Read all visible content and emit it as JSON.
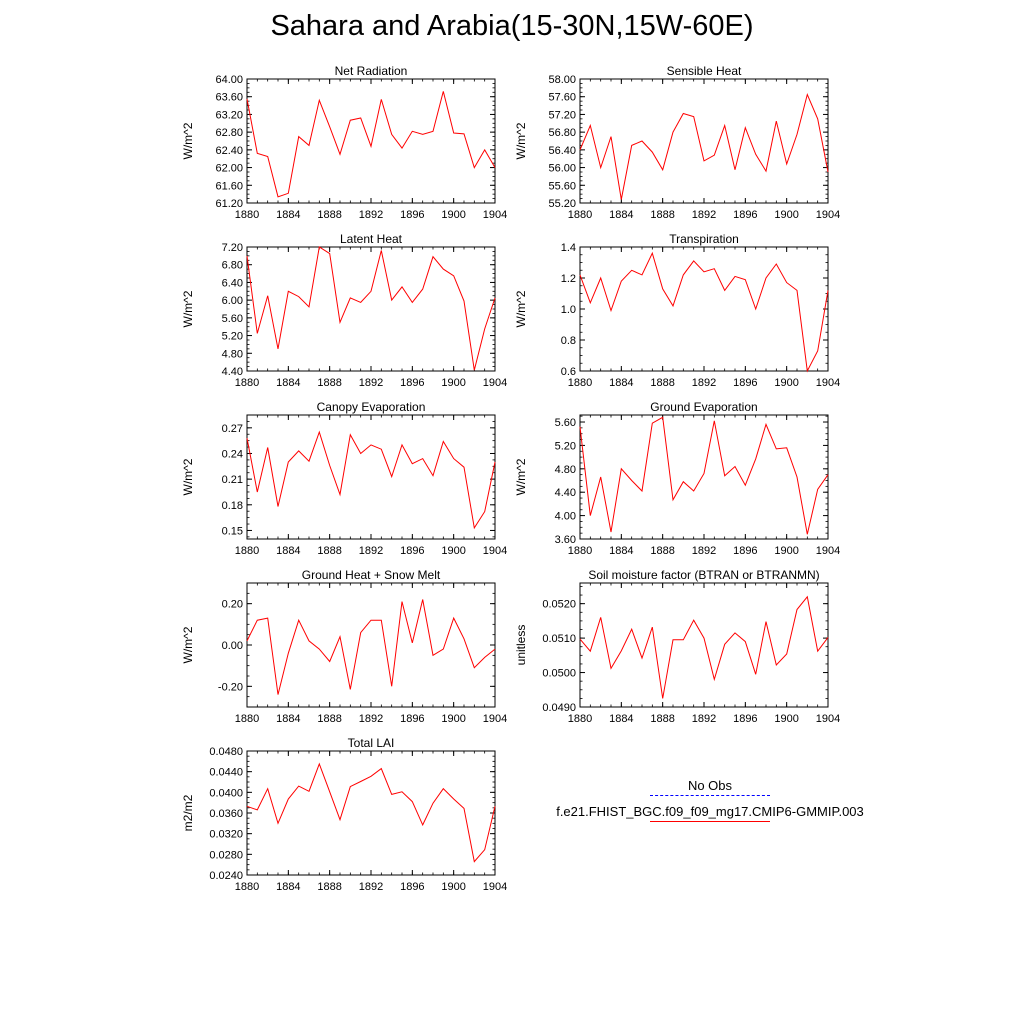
{
  "title": "Sahara and Arabia(15-30N,15W-60E)",
  "colors": {
    "series": "#ff0000",
    "obs": "#0000ff",
    "axis": "#000000"
  },
  "legend": {
    "obs_label": "No Obs",
    "model_label": "f.e21.FHIST_BGC.f09_f09_mg17.CMIP6-GMMIP.003"
  },
  "chart_data": [
    {
      "type": "line",
      "title": "Net Radiation",
      "ylabel": "W/m^2",
      "xlabel": "",
      "x": [
        1880,
        1881,
        1882,
        1883,
        1884,
        1885,
        1886,
        1887,
        1888,
        1889,
        1890,
        1891,
        1892,
        1893,
        1894,
        1895,
        1896,
        1897,
        1898,
        1899,
        1900,
        1901,
        1902,
        1903,
        1904
      ],
      "values": [
        63.55,
        62.32,
        62.25,
        61.34,
        61.42,
        62.7,
        62.5,
        63.52,
        62.92,
        62.3,
        63.07,
        63.12,
        62.48,
        63.54,
        62.75,
        62.44,
        62.82,
        62.75,
        62.82,
        63.72,
        62.78,
        62.76,
        62.0,
        62.4,
        62.0
      ],
      "ylim": [
        61.2,
        64.0
      ],
      "yticks": [
        "61.20",
        "61.60",
        "62.00",
        "62.40",
        "62.80",
        "63.20",
        "63.60",
        "64.00"
      ],
      "xticks": [
        "1880",
        "1884",
        "1888",
        "1892",
        "1896",
        "1900",
        "1904"
      ]
    },
    {
      "type": "line",
      "title": "Sensible Heat",
      "ylabel": "W/m^2",
      "xlabel": "",
      "x": [
        1880,
        1881,
        1882,
        1883,
        1884,
        1885,
        1886,
        1887,
        1888,
        1889,
        1890,
        1891,
        1892,
        1893,
        1894,
        1895,
        1896,
        1897,
        1898,
        1899,
        1900,
        1901,
        1902,
        1903,
        1904
      ],
      "values": [
        56.4,
        56.95,
        56.0,
        56.7,
        55.28,
        56.5,
        56.6,
        56.35,
        55.95,
        56.8,
        57.22,
        57.15,
        56.15,
        56.28,
        56.95,
        55.95,
        56.9,
        56.3,
        55.92,
        57.05,
        56.08,
        56.75,
        57.65,
        57.1,
        55.9
      ],
      "ylim": [
        55.2,
        58.0
      ],
      "yticks": [
        "55.20",
        "55.60",
        "56.00",
        "56.40",
        "56.80",
        "57.20",
        "57.60",
        "58.00"
      ],
      "xticks": [
        "1880",
        "1884",
        "1888",
        "1892",
        "1896",
        "1900",
        "1904"
      ]
    },
    {
      "type": "line",
      "title": "Latent Heat",
      "ylabel": "W/m^2",
      "xlabel": "",
      "x": [
        1880,
        1881,
        1882,
        1883,
        1884,
        1885,
        1886,
        1887,
        1888,
        1889,
        1890,
        1891,
        1892,
        1893,
        1894,
        1895,
        1896,
        1897,
        1898,
        1899,
        1900,
        1901,
        1902,
        1903,
        1904
      ],
      "values": [
        7.0,
        5.25,
        6.1,
        4.9,
        6.2,
        6.08,
        5.85,
        7.2,
        7.05,
        5.5,
        6.05,
        5.95,
        6.2,
        7.12,
        6.0,
        6.3,
        5.95,
        6.25,
        6.98,
        6.7,
        6.55,
        5.98,
        4.42,
        5.35,
        6.05
      ],
      "ylim": [
        4.4,
        7.2
      ],
      "yticks": [
        "4.40",
        "4.80",
        "5.20",
        "5.60",
        "6.00",
        "6.40",
        "6.80",
        "7.20"
      ],
      "xticks": [
        "1880",
        "1884",
        "1888",
        "1892",
        "1896",
        "1900",
        "1904"
      ]
    },
    {
      "type": "line",
      "title": "Transpiration",
      "ylabel": "W/m^2",
      "xlabel": "",
      "x": [
        1880,
        1881,
        1882,
        1883,
        1884,
        1885,
        1886,
        1887,
        1888,
        1889,
        1890,
        1891,
        1892,
        1893,
        1894,
        1895,
        1896,
        1897,
        1898,
        1899,
        1900,
        1901,
        1902,
        1903,
        1904
      ],
      "values": [
        1.22,
        1.04,
        1.2,
        0.99,
        1.18,
        1.25,
        1.22,
        1.36,
        1.13,
        1.02,
        1.22,
        1.31,
        1.24,
        1.26,
        1.12,
        1.21,
        1.19,
        1.0,
        1.2,
        1.29,
        1.17,
        1.12,
        0.6,
        0.73,
        1.12
      ],
      "ylim": [
        0.6,
        1.4
      ],
      "yticks": [
        "0.6",
        "0.8",
        "1.0",
        "1.2",
        "1.4"
      ],
      "xticks": [
        "1880",
        "1884",
        "1888",
        "1892",
        "1896",
        "1900",
        "1904"
      ]
    },
    {
      "type": "line",
      "title": "Canopy Evaporation",
      "ylabel": "W/m^2",
      "xlabel": "",
      "x": [
        1880,
        1881,
        1882,
        1883,
        1884,
        1885,
        1886,
        1887,
        1888,
        1889,
        1890,
        1891,
        1892,
        1893,
        1894,
        1895,
        1896,
        1897,
        1898,
        1899,
        1900,
        1901,
        1902,
        1903,
        1904
      ],
      "values": [
        0.258,
        0.195,
        0.247,
        0.178,
        0.23,
        0.243,
        0.231,
        0.265,
        0.226,
        0.192,
        0.262,
        0.24,
        0.25,
        0.245,
        0.213,
        0.25,
        0.228,
        0.234,
        0.214,
        0.254,
        0.234,
        0.224,
        0.153,
        0.172,
        0.23
      ],
      "ylim": [
        0.14,
        0.285
      ],
      "yticks": [
        "0.15",
        "0.18",
        "0.21",
        "0.24",
        "0.27"
      ],
      "xticks": [
        "1880",
        "1884",
        "1888",
        "1892",
        "1896",
        "1900",
        "1904"
      ]
    },
    {
      "type": "line",
      "title": "Ground Evaporation",
      "ylabel": "W/m^2",
      "xlabel": "",
      "x": [
        1880,
        1881,
        1882,
        1883,
        1884,
        1885,
        1886,
        1887,
        1888,
        1889,
        1890,
        1891,
        1892,
        1893,
        1894,
        1895,
        1896,
        1897,
        1898,
        1899,
        1900,
        1901,
        1902,
        1903,
        1904
      ],
      "values": [
        5.52,
        4.0,
        4.66,
        3.72,
        4.8,
        4.6,
        4.42,
        5.58,
        5.68,
        4.27,
        4.58,
        4.42,
        4.72,
        5.62,
        4.68,
        4.84,
        4.52,
        4.97,
        5.56,
        5.14,
        5.16,
        4.66,
        3.68,
        4.45,
        4.7
      ],
      "ylim": [
        3.6,
        5.72
      ],
      "yticks": [
        "3.60",
        "4.00",
        "4.40",
        "4.80",
        "5.20",
        "5.60"
      ],
      "xticks": [
        "1880",
        "1884",
        "1888",
        "1892",
        "1896",
        "1900",
        "1904"
      ]
    },
    {
      "type": "line",
      "title": "Ground Heat + Snow Melt",
      "ylabel": "W/m^2",
      "xlabel": "",
      "x": [
        1880,
        1881,
        1882,
        1883,
        1884,
        1885,
        1886,
        1887,
        1888,
        1889,
        1890,
        1891,
        1892,
        1893,
        1894,
        1895,
        1896,
        1897,
        1898,
        1899,
        1900,
        1901,
        1902,
        1903,
        1904
      ],
      "values": [
        0.02,
        0.12,
        0.13,
        -0.24,
        -0.04,
        0.12,
        0.02,
        -0.02,
        -0.08,
        0.04,
        -0.215,
        0.06,
        0.12,
        0.12,
        -0.2,
        0.21,
        0.01,
        0.22,
        -0.05,
        -0.02,
        0.13,
        0.03,
        -0.11,
        -0.06,
        -0.02
      ],
      "ylim": [
        -0.3,
        0.3
      ],
      "yticks": [
        "-0.20",
        "0.00",
        "0.20"
      ],
      "xticks": [
        "1880",
        "1884",
        "1888",
        "1892",
        "1896",
        "1900",
        "1904"
      ]
    },
    {
      "type": "line",
      "title": "Soil moisture factor (BTRAN or BTRANMN)",
      "ylabel": "unitless",
      "xlabel": "",
      "x": [
        1880,
        1881,
        1882,
        1883,
        1884,
        1885,
        1886,
        1887,
        1888,
        1889,
        1890,
        1891,
        1892,
        1893,
        1894,
        1895,
        1896,
        1897,
        1898,
        1899,
        1900,
        1901,
        1902,
        1903,
        1904
      ],
      "values": [
        0.05097,
        0.05062,
        0.0516,
        0.05012,
        0.05063,
        0.05126,
        0.05042,
        0.05132,
        0.04925,
        0.05095,
        0.05095,
        0.05152,
        0.051,
        0.0498,
        0.05082,
        0.05115,
        0.0509,
        0.04995,
        0.05148,
        0.05022,
        0.05054,
        0.05183,
        0.0522,
        0.05062,
        0.05102
      ],
      "ylim": [
        0.049,
        0.0526
      ],
      "yticks": [
        "0.0490",
        "0.0500",
        "0.0510",
        "0.0520"
      ],
      "xticks": [
        "1880",
        "1884",
        "1888",
        "1892",
        "1896",
        "1900",
        "1904"
      ]
    },
    {
      "type": "line",
      "title": "Total LAI",
      "ylabel": "m2/m2",
      "xlabel": "",
      "x": [
        1880,
        1881,
        1882,
        1883,
        1884,
        1885,
        1886,
        1887,
        1888,
        1889,
        1890,
        1891,
        1892,
        1893,
        1894,
        1895,
        1896,
        1897,
        1898,
        1899,
        1900,
        1901,
        1902,
        1903,
        1904
      ],
      "values": [
        0.0373,
        0.0366,
        0.0407,
        0.034,
        0.0387,
        0.0412,
        0.0402,
        0.0455,
        0.0401,
        0.0347,
        0.0411,
        0.0421,
        0.0431,
        0.0446,
        0.0396,
        0.0401,
        0.0382,
        0.0337,
        0.0379,
        0.0407,
        0.0387,
        0.0369,
        0.0266,
        0.0289,
        0.0373
      ],
      "ylim": [
        0.024,
        0.048
      ],
      "yticks": [
        "0.0240",
        "0.0280",
        "0.0320",
        "0.0360",
        "0.0400",
        "0.0440",
        "0.0480"
      ],
      "xticks": [
        "1880",
        "1884",
        "1888",
        "1892",
        "1896",
        "1900",
        "1904"
      ]
    }
  ]
}
